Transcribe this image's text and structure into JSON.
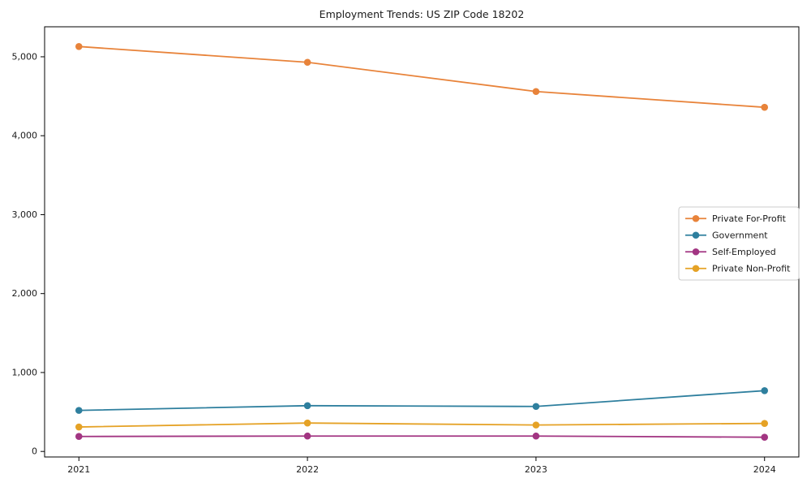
{
  "chart_data": {
    "type": "line",
    "title": "Employment Trends: US ZIP Code 18202",
    "xlabel": "",
    "ylabel": "",
    "x": [
      2021,
      2022,
      2023,
      2024
    ],
    "series": [
      {
        "name": "Private For-Profit",
        "color": "#e8833a",
        "values": [
          5130,
          4930,
          4560,
          4360
        ]
      },
      {
        "name": "Government",
        "color": "#2e7f9e",
        "values": [
          520,
          580,
          570,
          770
        ]
      },
      {
        "name": "Self-Employed",
        "color": "#a23582",
        "values": [
          190,
          195,
          195,
          180
        ]
      },
      {
        "name": "Private Non-Profit",
        "color": "#e5a226",
        "values": [
          310,
          360,
          335,
          355
        ]
      }
    ],
    "yticks": [
      0,
      1000,
      2000,
      3000,
      4000,
      5000
    ],
    "ylim": [
      -70,
      5380
    ],
    "grid": false,
    "legend_position": "center-right",
    "marker": "circle",
    "axis_color": "#000000",
    "legend_border_color": "#cccccc"
  }
}
